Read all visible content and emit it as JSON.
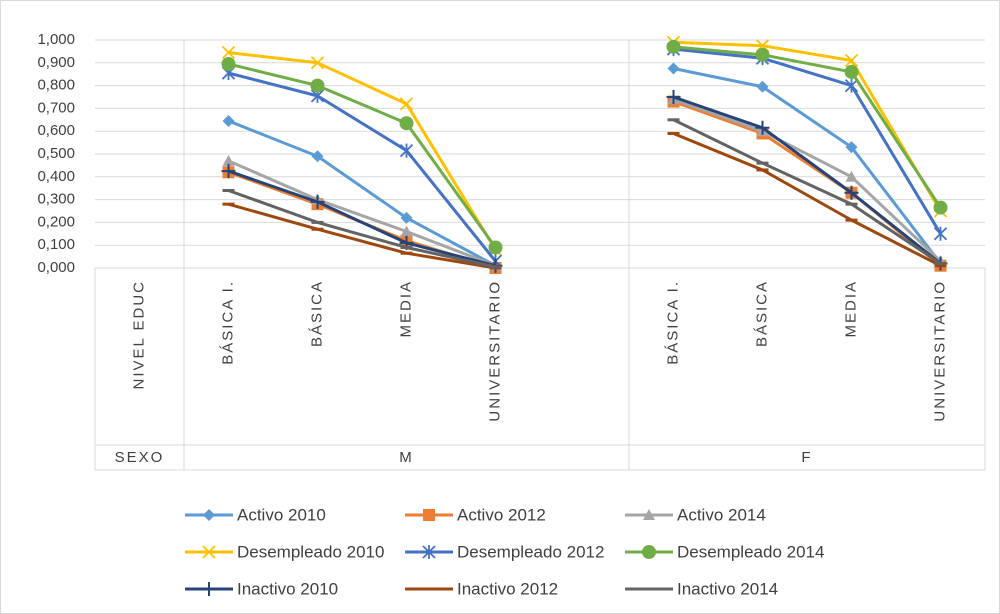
{
  "chart_data": {
    "type": "line",
    "categories": [
      "NIVEL EDUC",
      "BÁSICA I.",
      "BÁSICA",
      "MEDIA",
      "UNIVERSITARIO",
      null,
      "BÁSICA I.",
      "BÁSICA",
      "MEDIA",
      "UNIVERSITARIO"
    ],
    "groups": [
      {
        "label": "SEXO",
        "span": 1
      },
      {
        "label": "M",
        "span": 5
      },
      {
        "label": "F",
        "span": 4
      }
    ],
    "ylim": [
      0,
      1
    ],
    "yticks": [
      {
        "value": 0,
        "label": "0,000"
      },
      {
        "value": 0.1,
        "label": "0,100"
      },
      {
        "value": 0.2,
        "label": "0,200"
      },
      {
        "value": 0.3,
        "label": "0,300"
      },
      {
        "value": 0.4,
        "label": "0,400"
      },
      {
        "value": 0.5,
        "label": "0,500"
      },
      {
        "value": 0.6,
        "label": "0,600"
      },
      {
        "value": 0.7,
        "label": "0,700"
      },
      {
        "value": 0.8,
        "label": "0,800"
      },
      {
        "value": 0.9,
        "label": "0,900"
      },
      {
        "value": 1,
        "label": "1,000"
      }
    ],
    "grid": true,
    "legend": "bottom",
    "series": [
      {
        "name": "Activo 2010",
        "color": "#5b9bd5",
        "marker": "diamond",
        "values": [
          null,
          0.645,
          0.49,
          0.22,
          0.01,
          null,
          0.875,
          0.795,
          0.53,
          0.02
        ]
      },
      {
        "name": "Activo 2012",
        "color": "#ed7d31",
        "marker": "square",
        "values": [
          null,
          0.42,
          0.28,
          0.12,
          0.0,
          null,
          0.73,
          0.59,
          0.33,
          0.01
        ]
      },
      {
        "name": "Activo 2014",
        "color": "#a5a5a5",
        "marker": "triangle",
        "values": [
          null,
          0.47,
          0.3,
          0.16,
          0.01,
          null,
          0.74,
          0.6,
          0.4,
          0.03
        ]
      },
      {
        "name": "Desempleado 2010",
        "color": "#ffc000",
        "marker": "x",
        "values": [
          null,
          0.945,
          0.9,
          0.72,
          0.08,
          null,
          0.99,
          0.975,
          0.91,
          0.25
        ]
      },
      {
        "name": "Desempleado 2012",
        "color": "#4472c4",
        "marker": "star",
        "values": [
          null,
          0.855,
          0.755,
          0.515,
          0.03,
          null,
          0.96,
          0.92,
          0.8,
          0.15
        ]
      },
      {
        "name": "Desempleado 2014",
        "color": "#70ad47",
        "marker": "circle",
        "values": [
          null,
          0.895,
          0.8,
          0.635,
          0.09,
          null,
          0.97,
          0.935,
          0.86,
          0.265
        ]
      },
      {
        "name": "Inactivo 2010",
        "color": "#264478",
        "marker": "plus",
        "values": [
          null,
          0.425,
          0.29,
          0.11,
          0.01,
          null,
          0.75,
          0.615,
          0.33,
          0.02
        ]
      },
      {
        "name": "Inactivo 2012",
        "color": "#9e480e",
        "marker": "dash",
        "values": [
          null,
          0.28,
          0.17,
          0.065,
          0.0,
          null,
          0.59,
          0.43,
          0.21,
          0.01
        ]
      },
      {
        "name": "Inactivo 2014",
        "color": "#636363",
        "marker": "dash",
        "values": [
          null,
          0.34,
          0.2,
          0.09,
          0.005,
          null,
          0.65,
          0.46,
          0.28,
          0.02
        ]
      }
    ]
  }
}
